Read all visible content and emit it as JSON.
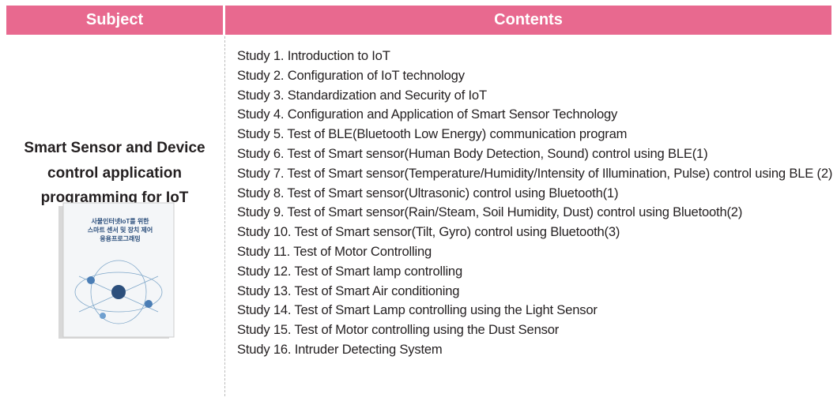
{
  "header": {
    "subject": "Subject",
    "contents": "Contents"
  },
  "subject": {
    "title_lines": [
      "Smart Sensor and Device",
      "control application",
      "programming for IoT"
    ],
    "book_cover": [
      "사물인터넷IoT를 위한",
      "스마트 센서 및 장치 제어",
      "응용프로그래밍"
    ]
  },
  "contents": [
    "Study 1. Introduction to IoT",
    "Study 2. Configuration of IoT technology",
    "Study 3. Standardization and Security of IoT",
    "Study 4. Configuration and Application of Smart Sensor Technology",
    "Study 5. Test of BLE(Bluetooth Low Energy) communication program",
    "Study 6. Test of Smart sensor(Human Body Detection, Sound) control using BLE(1)",
    "Study 7. Test of Smart sensor(Temperature/Humidity/Intensity of Illumination, Pulse) control using BLE (2)",
    "Study 8. Test of Smart sensor(Ultrasonic) control using Bluetooth(1)",
    "Study 9. Test of Smart sensor(Rain/Steam, Soil Humidity, Dust) control using Bluetooth(2)",
    "Study 10. Test of Smart sensor(Tilt, Gyro) control using Bluetooth(3)",
    "Study 11. Test of Motor Controlling",
    "Study 12. Test of Smart lamp controlling",
    "Study 13. Test of Smart Air conditioning",
    "Study 14. Test of Smart Lamp controlling using the Light Sensor",
    "Study 15. Test of Motor controlling using the Dust Sensor",
    "Study 16. Intruder Detecting System"
  ]
}
